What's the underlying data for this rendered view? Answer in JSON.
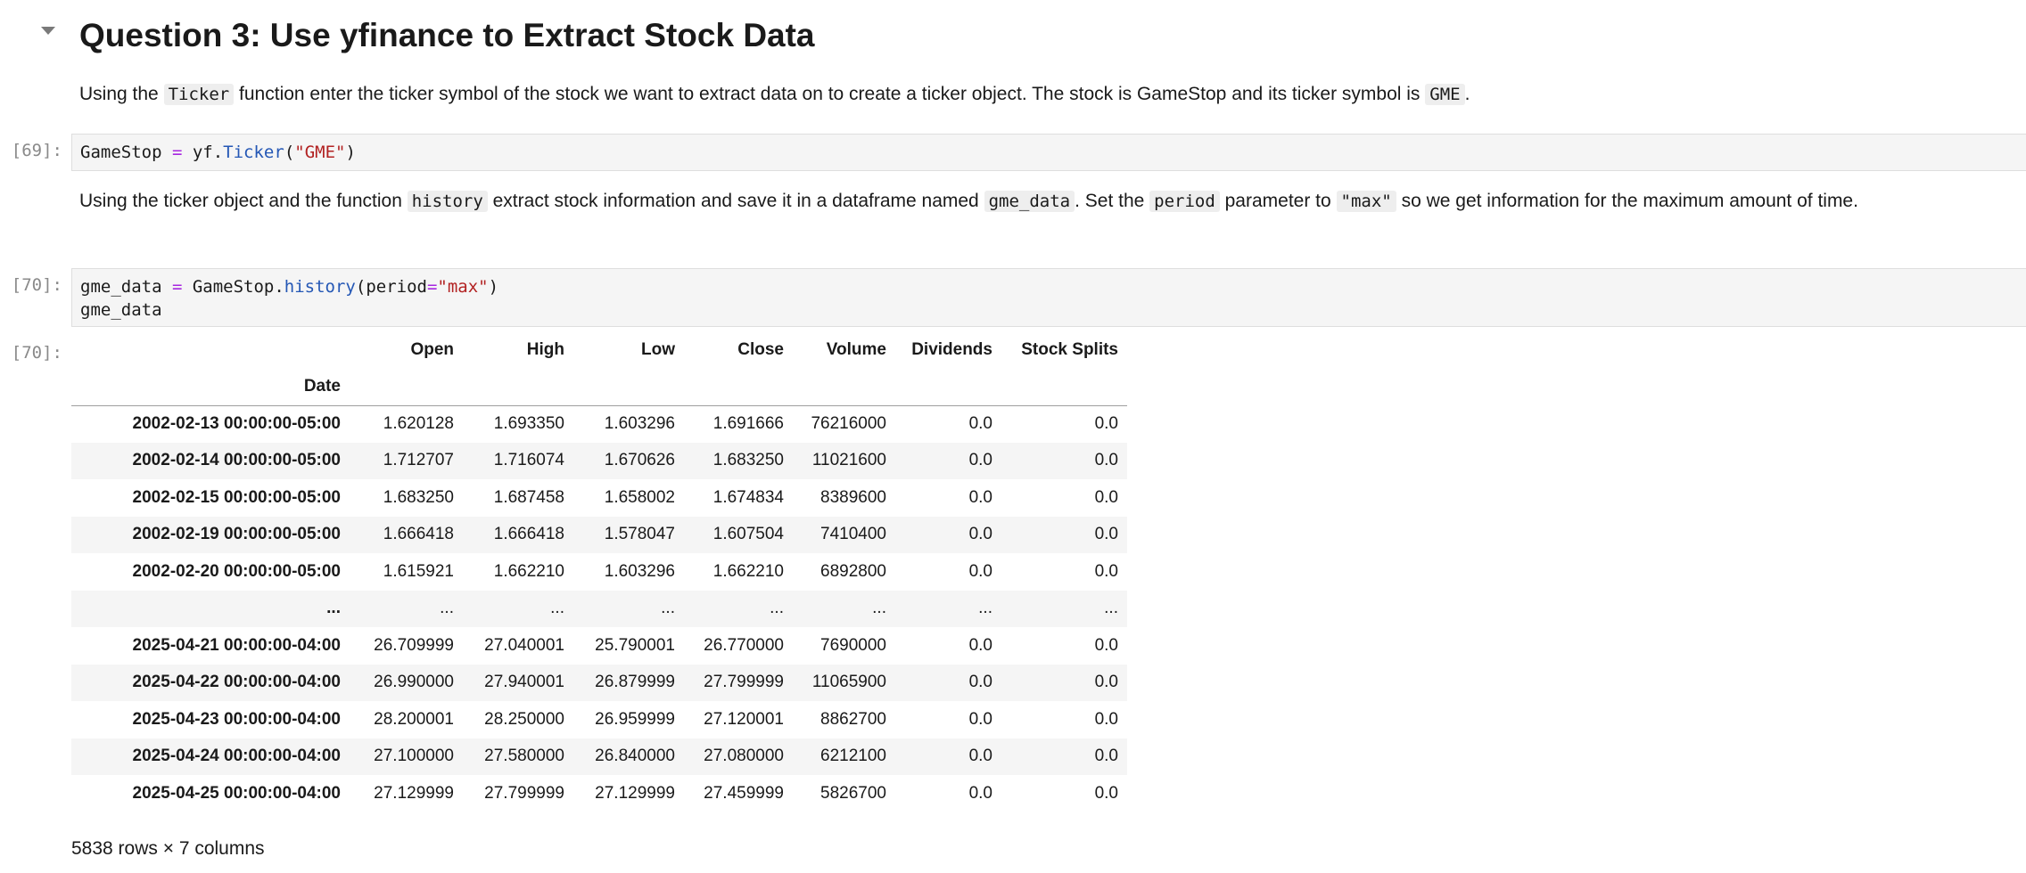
{
  "heading": "Question 3: Use yfinance to Extract Stock Data",
  "markdown1": {
    "t1": "Using the ",
    "c1": "Ticker",
    "t2": " function enter the ticker symbol of the stock we want to extract data on to create a ticker object. The stock is GameStop and its ticker symbol is ",
    "c2": "GME",
    "t3": "."
  },
  "markdown2": {
    "t1": "Using the ticker object and the function ",
    "c1": "history",
    "t2": " extract stock information and save it in a dataframe named ",
    "c2": "gme_data",
    "t3": ". Set the ",
    "c3": "period",
    "t4": " parameter to ",
    "c4": "\"max\"",
    "t5": " so we get information for the maximum amount of time."
  },
  "cell1": {
    "prompt": "[69]:",
    "code": {
      "var": "GameStop",
      "op": " = ",
      "obj": "yf.",
      "fn": "Ticker",
      "open": "(",
      "str": "\"GME\"",
      "close": ")"
    }
  },
  "cell2": {
    "prompt": "[70]:",
    "code": {
      "var": "gme_data",
      "op": " = ",
      "obj": "GameStop.",
      "fn": "history",
      "open": "(period",
      "eq": "=",
      "str": "\"max\"",
      "close": ")",
      "line2": "gme_data"
    }
  },
  "output": {
    "prompt": "[70]:",
    "index_name": "Date",
    "columns": [
      "Open",
      "High",
      "Low",
      "Close",
      "Volume",
      "Dividends",
      "Stock Splits"
    ],
    "rows": [
      [
        "2002-02-13 00:00:00-05:00",
        "1.620128",
        "1.693350",
        "1.603296",
        "1.691666",
        "76216000",
        "0.0",
        "0.0"
      ],
      [
        "2002-02-14 00:00:00-05:00",
        "1.712707",
        "1.716074",
        "1.670626",
        "1.683250",
        "11021600",
        "0.0",
        "0.0"
      ],
      [
        "2002-02-15 00:00:00-05:00",
        "1.683250",
        "1.687458",
        "1.658002",
        "1.674834",
        "8389600",
        "0.0",
        "0.0"
      ],
      [
        "2002-02-19 00:00:00-05:00",
        "1.666418",
        "1.666418",
        "1.578047",
        "1.607504",
        "7410400",
        "0.0",
        "0.0"
      ],
      [
        "2002-02-20 00:00:00-05:00",
        "1.615921",
        "1.662210",
        "1.603296",
        "1.662210",
        "6892800",
        "0.0",
        "0.0"
      ],
      [
        "...",
        "...",
        "...",
        "...",
        "...",
        "...",
        "...",
        "..."
      ],
      [
        "2025-04-21 00:00:00-04:00",
        "26.709999",
        "27.040001",
        "25.790001",
        "26.770000",
        "7690000",
        "0.0",
        "0.0"
      ],
      [
        "2025-04-22 00:00:00-04:00",
        "26.990000",
        "27.940001",
        "26.879999",
        "27.799999",
        "11065900",
        "0.0",
        "0.0"
      ],
      [
        "2025-04-23 00:00:00-04:00",
        "28.200001",
        "28.250000",
        "26.959999",
        "27.120001",
        "8862700",
        "0.0",
        "0.0"
      ],
      [
        "2025-04-24 00:00:00-04:00",
        "27.100000",
        "27.580000",
        "26.840000",
        "27.080000",
        "6212100",
        "0.0",
        "0.0"
      ],
      [
        "2025-04-25 00:00:00-04:00",
        "27.129999",
        "27.799999",
        "27.129999",
        "27.459999",
        "5826700",
        "0.0",
        "0.0"
      ]
    ],
    "shape": "5838 rows × 7 columns"
  }
}
